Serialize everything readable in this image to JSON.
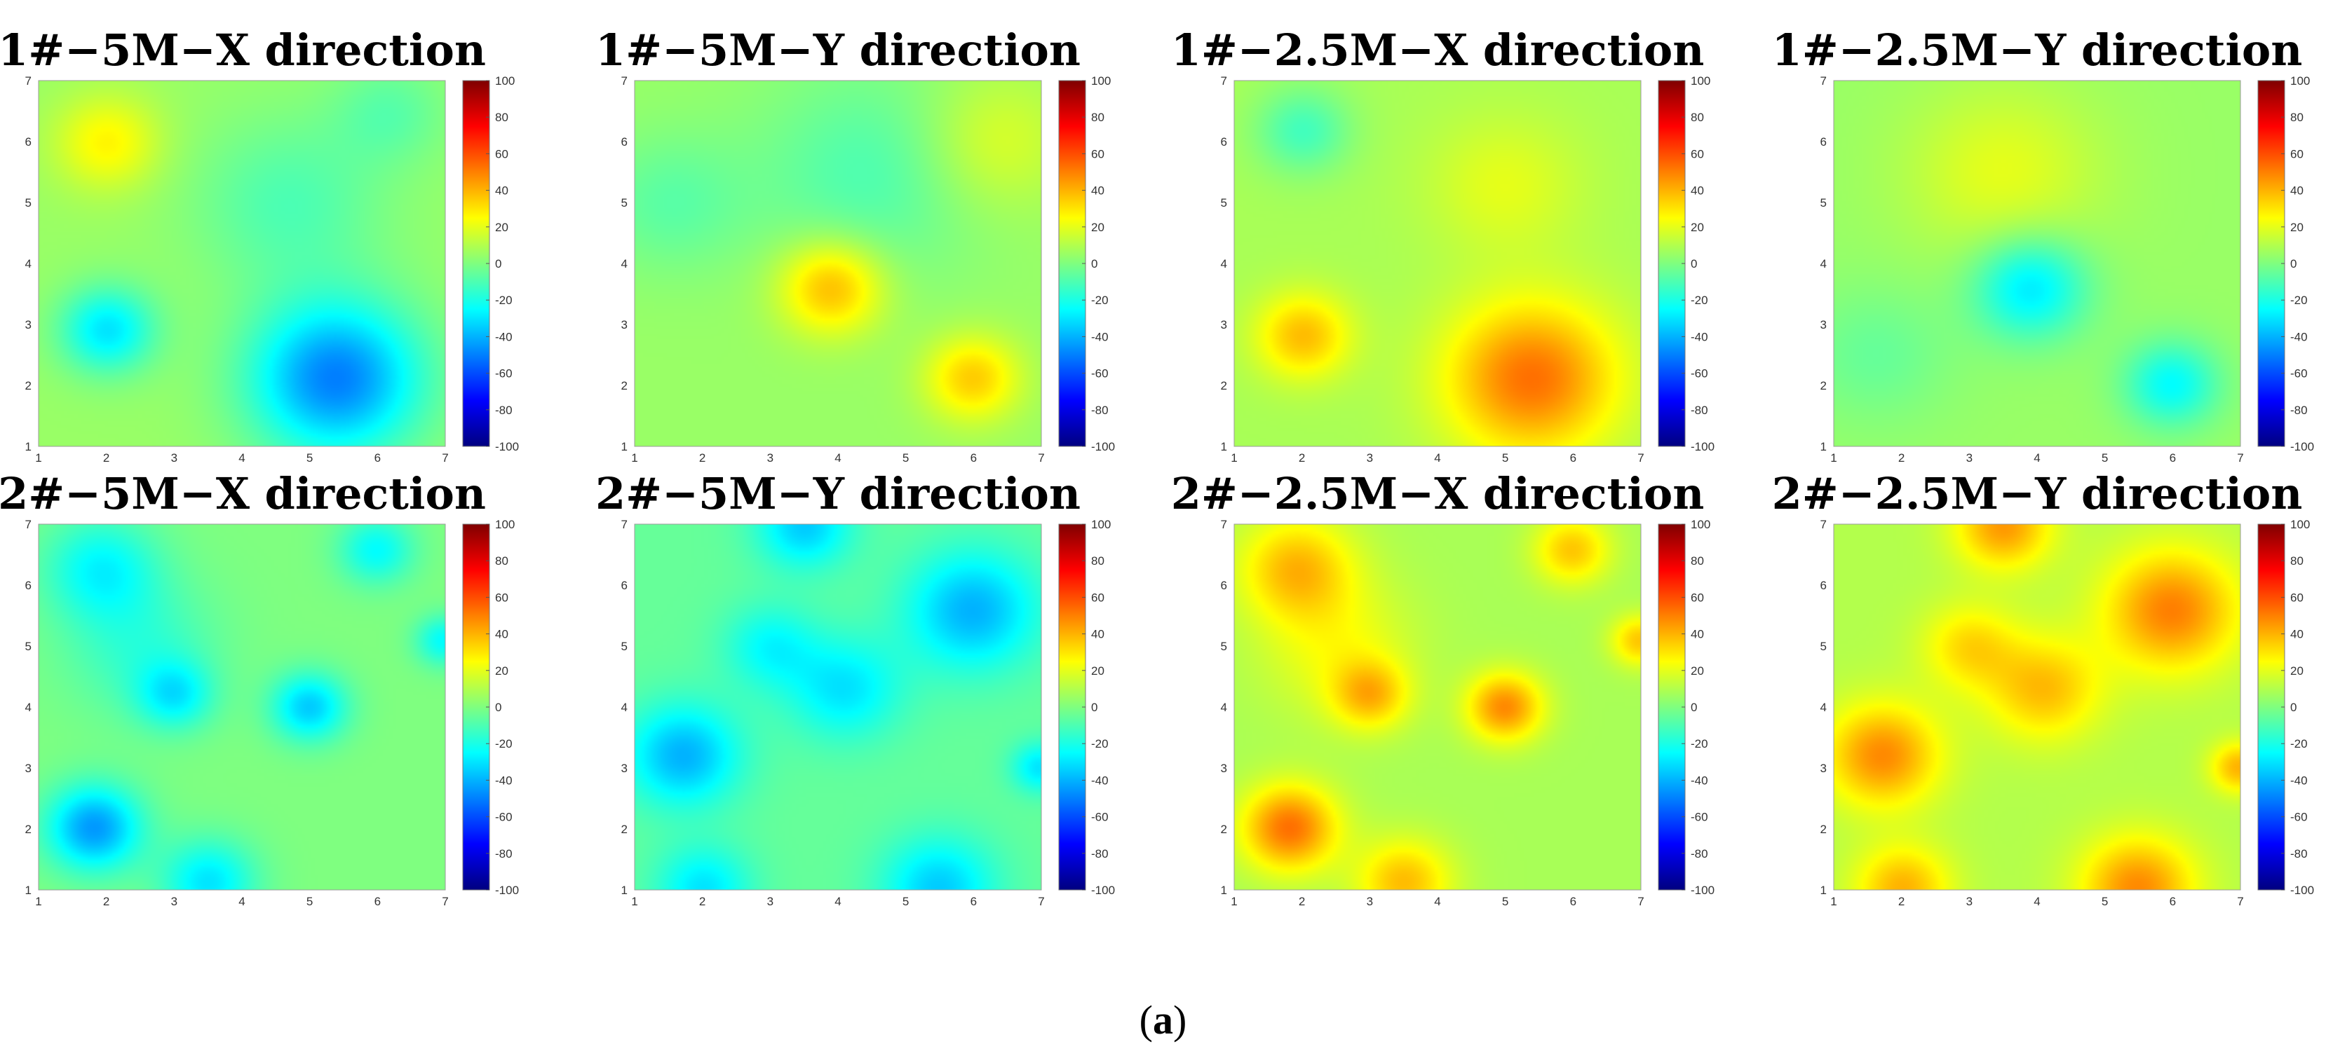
{
  "figure": {
    "caption_open": "(",
    "caption_letter": "a",
    "caption_close": ")"
  },
  "chart_data": [
    {
      "type": "heatmap",
      "title": "1#−5M−X direction",
      "xlim": [
        1,
        7
      ],
      "ylim": [
        1,
        7
      ],
      "xticks": [
        1,
        2,
        3,
        4,
        5,
        6,
        7
      ],
      "yticks": [
        1,
        2,
        3,
        4,
        5,
        6,
        7
      ],
      "colorbar": {
        "range": [
          -100,
          100
        ],
        "ticks": [
          100,
          80,
          60,
          40,
          20,
          0,
          -20,
          -40,
          -60,
          -80,
          -100
        ],
        "colormap": "jet"
      },
      "base": 5,
      "features": [
        {
          "x": 2,
          "y": 6,
          "value": 22,
          "spread": 0.55
        },
        {
          "x": 2,
          "y": 2.9,
          "value": -35,
          "spread": 0.5
        },
        {
          "x": 5.4,
          "y": 2.1,
          "value": -55,
          "spread": 0.9
        },
        {
          "x": 4.7,
          "y": 5,
          "value": -15,
          "spread": 1
        },
        {
          "x": 6.2,
          "y": 6.5,
          "value": -12,
          "spread": 0.6
        }
      ]
    },
    {
      "type": "heatmap",
      "title": "1#−5M−Y direction",
      "xlim": [
        1,
        7
      ],
      "ylim": [
        1,
        7
      ],
      "xticks": [
        1,
        2,
        3,
        4,
        5,
        6,
        7
      ],
      "yticks": [
        1,
        2,
        3,
        4,
        5,
        6,
        7
      ],
      "colorbar": {
        "range": [
          -100,
          100
        ],
        "ticks": [
          100,
          80,
          60,
          40,
          20,
          0,
          -20,
          -40,
          -60,
          -80,
          -100
        ],
        "colormap": "jet"
      },
      "base": 5,
      "features": [
        {
          "x": 3.9,
          "y": 3.6,
          "value": 35,
          "spread": 0.55
        },
        {
          "x": 6,
          "y": 2.1,
          "value": 30,
          "spread": 0.5
        },
        {
          "x": 4.5,
          "y": 5.5,
          "value": -15,
          "spread": 1.2
        },
        {
          "x": 1.5,
          "y": 5,
          "value": -12,
          "spread": 0.8
        },
        {
          "x": 6.3,
          "y": 6,
          "value": 15,
          "spread": 0.8
        }
      ]
    },
    {
      "type": "heatmap",
      "title": "1#−2.5M−X direction",
      "xlim": [
        1,
        7
      ],
      "ylim": [
        1,
        7
      ],
      "xticks": [
        1,
        2,
        3,
        4,
        5,
        6,
        7
      ],
      "yticks": [
        1,
        2,
        3,
        4,
        5,
        6,
        7
      ],
      "colorbar": {
        "range": [
          -100,
          100
        ],
        "ticks": [
          100,
          80,
          60,
          40,
          20,
          0,
          -20,
          -40,
          -60,
          -80,
          -100
        ],
        "colormap": "jet"
      },
      "base": 8,
      "features": [
        {
          "x": 2,
          "y": 2.8,
          "value": 30,
          "spread": 0.5
        },
        {
          "x": 5.4,
          "y": 2.1,
          "value": 45,
          "spread": 0.9
        },
        {
          "x": 2,
          "y": 6.2,
          "value": -20,
          "spread": 0.5
        },
        {
          "x": 5,
          "y": 5.3,
          "value": 12,
          "spread": 0.8
        }
      ]
    },
    {
      "type": "heatmap",
      "title": "1#−2.5M−Y direction",
      "xlim": [
        1,
        7
      ],
      "ylim": [
        1,
        7
      ],
      "xticks": [
        1,
        2,
        3,
        4,
        5,
        6,
        7
      ],
      "yticks": [
        1,
        2,
        3,
        4,
        5,
        6,
        7
      ],
      "colorbar": {
        "range": [
          -100,
          100
        ],
        "ticks": [
          100,
          80,
          60,
          40,
          20,
          0,
          -20,
          -40,
          -60,
          -80,
          -100
        ],
        "colormap": "jet"
      },
      "base": 5,
      "features": [
        {
          "x": 3.9,
          "y": 3.6,
          "value": -35,
          "spread": 0.6
        },
        {
          "x": 6,
          "y": 2,
          "value": -30,
          "spread": 0.5
        },
        {
          "x": 3.5,
          "y": 5.5,
          "value": 15,
          "spread": 1
        },
        {
          "x": 1.6,
          "y": 2.5,
          "value": -10,
          "spread": 0.8
        }
      ]
    },
    {
      "type": "heatmap",
      "title": "2#−5M−X direction",
      "xlim": [
        1,
        7
      ],
      "ylim": [
        1,
        7
      ],
      "xticks": [
        1,
        2,
        3,
        4,
        5,
        6,
        7
      ],
      "yticks": [
        1,
        2,
        3,
        4,
        5,
        6,
        7
      ],
      "colorbar": {
        "range": [
          -100,
          100
        ],
        "ticks": [
          100,
          80,
          60,
          40,
          20,
          0,
          -20,
          -40,
          -60,
          -80,
          -100
        ],
        "colormap": "jet"
      },
      "base": 0,
      "features": [
        {
          "x": 1.8,
          "y": 2,
          "value": -45,
          "spread": 0.5
        },
        {
          "x": 5,
          "y": 4,
          "value": -35,
          "spread": 0.4
        },
        {
          "x": 1.9,
          "y": 6.3,
          "value": -25,
          "spread": 0.6
        },
        {
          "x": 3,
          "y": 4.2,
          "value": -25,
          "spread": 0.4
        },
        {
          "x": 6,
          "y": 6.6,
          "value": -25,
          "spread": 0.4
        },
        {
          "x": 7,
          "y": 5.1,
          "value": -25,
          "spread": 0.3
        },
        {
          "x": 3.5,
          "y": 1.1,
          "value": -30,
          "spread": 0.5
        },
        {
          "x": 2.5,
          "y": 5,
          "value": -15,
          "spread": 0.8
        }
      ]
    },
    {
      "type": "heatmap",
      "title": "2#−5M−Y direction",
      "xlim": [
        1,
        7
      ],
      "ylim": [
        1,
        7
      ],
      "xticks": [
        1,
        2,
        3,
        4,
        5,
        6,
        7
      ],
      "yticks": [
        1,
        2,
        3,
        4,
        5,
        6,
        7
      ],
      "colorbar": {
        "range": [
          -100,
          100
        ],
        "ticks": [
          100,
          80,
          60,
          40,
          20,
          0,
          -20,
          -40,
          -60,
          -80,
          -100
        ],
        "colormap": "jet"
      },
      "base": -5,
      "features": [
        {
          "x": 6,
          "y": 5.6,
          "value": -35,
          "spread": 0.7
        },
        {
          "x": 1.7,
          "y": 3.2,
          "value": -35,
          "spread": 0.6
        },
        {
          "x": 4.1,
          "y": 4.3,
          "value": -25,
          "spread": 0.6
        },
        {
          "x": 3.5,
          "y": 7,
          "value": -30,
          "spread": 0.5
        },
        {
          "x": 5.5,
          "y": 1,
          "value": -30,
          "spread": 0.6
        },
        {
          "x": 2,
          "y": 1,
          "value": -25,
          "spread": 0.5
        },
        {
          "x": 7,
          "y": 3,
          "value": -25,
          "spread": 0.3
        },
        {
          "x": 3,
          "y": 5,
          "value": -20,
          "spread": 0.5
        }
      ]
    },
    {
      "type": "heatmap",
      "title": "2#−2.5M−X direction",
      "xlim": [
        1,
        7
      ],
      "ylim": [
        1,
        7
      ],
      "xticks": [
        1,
        2,
        3,
        4,
        5,
        6,
        7
      ],
      "yticks": [
        1,
        2,
        3,
        4,
        5,
        6,
        7
      ],
      "colorbar": {
        "range": [
          -100,
          100
        ],
        "ticks": [
          100,
          80,
          60,
          40,
          20,
          0,
          -20,
          -40,
          -60,
          -80,
          -100
        ],
        "colormap": "jet"
      },
      "base": 8,
      "features": [
        {
          "x": 1.8,
          "y": 2,
          "value": 45,
          "spread": 0.5
        },
        {
          "x": 5,
          "y": 4,
          "value": 40,
          "spread": 0.4
        },
        {
          "x": 1.9,
          "y": 6.3,
          "value": 30,
          "spread": 0.6
        },
        {
          "x": 3,
          "y": 4.2,
          "value": 28,
          "spread": 0.4
        },
        {
          "x": 6,
          "y": 6.6,
          "value": 28,
          "spread": 0.4
        },
        {
          "x": 7,
          "y": 5.1,
          "value": 28,
          "spread": 0.3
        },
        {
          "x": 3.5,
          "y": 1.1,
          "value": 30,
          "spread": 0.5
        },
        {
          "x": 2.5,
          "y": 5,
          "value": 15,
          "spread": 0.8
        }
      ]
    },
    {
      "type": "heatmap",
      "title": "2#−2.5M−Y direction",
      "xlim": [
        1,
        7
      ],
      "ylim": [
        1,
        7
      ],
      "xticks": [
        1,
        2,
        3,
        4,
        5,
        6,
        7
      ],
      "yticks": [
        1,
        2,
        3,
        4,
        5,
        6,
        7
      ],
      "colorbar": {
        "range": [
          -100,
          100
        ],
        "ticks": [
          100,
          80,
          60,
          40,
          20,
          0,
          -20,
          -40,
          -60,
          -80,
          -100
        ],
        "colormap": "jet"
      },
      "base": 10,
      "features": [
        {
          "x": 6,
          "y": 5.6,
          "value": 40,
          "spread": 0.7
        },
        {
          "x": 1.7,
          "y": 3.2,
          "value": 38,
          "spread": 0.6
        },
        {
          "x": 4.1,
          "y": 4.3,
          "value": 28,
          "spread": 0.6
        },
        {
          "x": 3.5,
          "y": 7,
          "value": 35,
          "spread": 0.5
        },
        {
          "x": 5.5,
          "y": 1,
          "value": 38,
          "spread": 0.6
        },
        {
          "x": 2,
          "y": 1,
          "value": 30,
          "spread": 0.5
        },
        {
          "x": 7,
          "y": 3,
          "value": 30,
          "spread": 0.3
        },
        {
          "x": 3,
          "y": 5,
          "value": 22,
          "spread": 0.5
        }
      ]
    }
  ]
}
